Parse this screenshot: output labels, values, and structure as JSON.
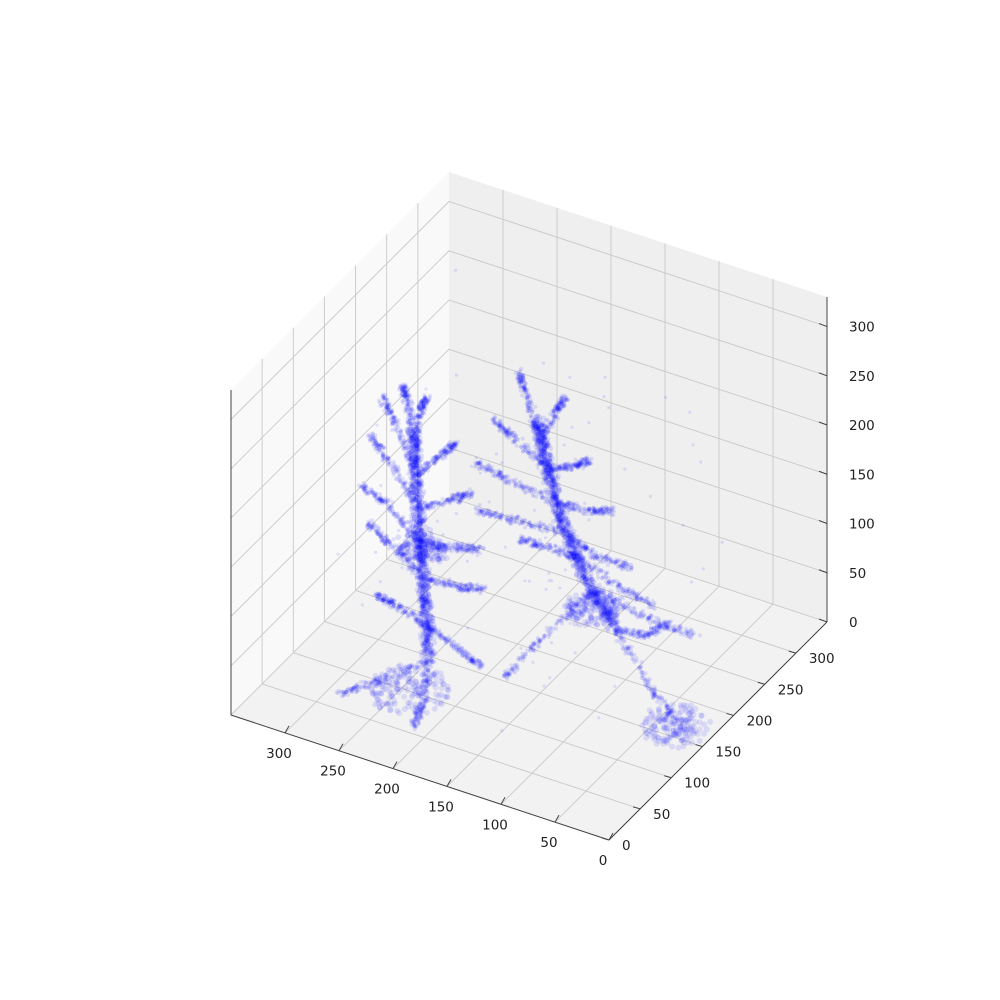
{
  "chart_data": {
    "type": "scatter",
    "projection": "3d",
    "title": "",
    "xlabel": "",
    "ylabel": "",
    "zlabel": "",
    "xlim": [
      0,
      350
    ],
    "ylim": [
      0,
      350
    ],
    "zlim": [
      0,
      330
    ],
    "xticks": [
      "0",
      "50",
      "100",
      "150",
      "200",
      "250",
      "300"
    ],
    "yticks": [
      "0",
      "50",
      "100",
      "150",
      "200",
      "250",
      "300"
    ],
    "zticks": [
      "0",
      "50",
      "100",
      "150",
      "200",
      "250",
      "300"
    ],
    "grid": true,
    "legend": "none",
    "series": [
      {
        "color": "#0000ff",
        "opacity": 0.1,
        "structures": [
          {
            "trunk": [
              [
                115,
                210,
                40
              ],
              [
                135,
                195,
                95
              ],
              [
                150,
                185,
                150
              ],
              [
                160,
                180,
                205
              ],
              [
                168,
                175,
                255
              ]
            ],
            "branches": [
              [
                [
                  115,
                  210,
                  40
                ],
                [
                  60,
                  170,
                  25
                ],
                [
                  20,
                  150,
                  15
                ]
              ],
              [
                [
                  115,
                  210,
                  40
                ],
                [
                  110,
                  250,
                  10
                ],
                [
                  105,
                  280,
                  5
                ]
              ],
              [
                [
                  130,
                  200,
                  80
                ],
                [
                  80,
                  200,
                  70
                ],
                [
                  40,
                  210,
                  60
                ]
              ],
              [
                [
                  130,
                  200,
                  80
                ],
                [
                  150,
                  150,
                  55
                ],
                [
                  165,
                  120,
                  30
                ]
              ],
              [
                [
                  140,
                  192,
                  115
                ],
                [
                  95,
                  180,
                  110
                ],
                [
                  60,
                  175,
                  105
                ]
              ],
              [
                [
                  140,
                  192,
                  115
                ],
                [
                  180,
                  210,
                  100
                ],
                [
                  210,
                  220,
                  90
                ]
              ],
              [
                [
                  148,
                  187,
                  140
                ],
                [
                  110,
                  170,
                  140
                ],
                [
                  70,
                  160,
                  150
                ]
              ],
              [
                [
                  148,
                  187,
                  140
                ],
                [
                  190,
                  175,
                  145
                ],
                [
                  225,
                  180,
                  140
                ]
              ],
              [
                [
                  153,
                  184,
                  170
                ],
                [
                  115,
                  170,
                  185
                ],
                [
                  90,
                  160,
                  200
                ]
              ],
              [
                [
                  153,
                  184,
                  170
                ],
                [
                  195,
                  175,
                  185
                ],
                [
                  220,
                  170,
                  195
                ]
              ],
              [
                [
                  160,
                  180,
                  205
                ],
                [
                  130,
                  170,
                  225
                ],
                [
                  110,
                  160,
                  245
                ]
              ],
              [
                [
                  160,
                  180,
                  205
                ],
                [
                  190,
                  175,
                  230
                ],
                [
                  205,
                  170,
                  245
                ]
              ],
              [
                [
                  165,
                  177,
                  235
                ],
                [
                  150,
                  175,
                  270
                ],
                [
                  140,
                  172,
                  290
                ]
              ],
              [
                [
                  165,
                  177,
                  235
                ],
                [
                  178,
                  176,
                  275
                ],
                [
                  185,
                  175,
                  300
                ]
              ]
            ]
          },
          {
            "trunk": [
              [
                230,
                110,
                30
              ],
              [
                240,
                120,
                80
              ],
              [
                250,
                130,
                130
              ],
              [
                258,
                138,
                180
              ],
              [
                265,
                145,
                230
              ]
            ],
            "branches": [
              [
                [
                  230,
                  110,
                  30
                ],
                [
                  265,
                  85,
                  10
                ],
                [
                  290,
                  70,
                  0
                ]
              ],
              [
                [
                  230,
                  110,
                  30
                ],
                [
                  220,
                  80,
                  5
                ],
                [
                  215,
                  60,
                  0
                ]
              ],
              [
                [
                  236,
                  115,
                  60
                ],
                [
                  200,
                  105,
                  55
                ],
                [
                  175,
                  100,
                  50
                ]
              ],
              [
                [
                  236,
                  115,
                  60
                ],
                [
                  280,
                  140,
                  50
                ],
                [
                  305,
                  155,
                  40
                ]
              ],
              [
                [
                  242,
                  122,
                  100
                ],
                [
                  205,
                  115,
                  110
                ],
                [
                  180,
                  110,
                  120
                ]
              ],
              [
                [
                  242,
                  122,
                  100
                ],
                [
                  285,
                  140,
                  110
                ],
                [
                  310,
                  150,
                  115
                ]
              ],
              [
                [
                  248,
                  128,
                  130
                ],
                [
                  210,
                  120,
                  145
                ],
                [
                  185,
                  115,
                  155
                ]
              ],
              [
                [
                  248,
                  128,
                  130
                ],
                [
                  290,
                  145,
                  145
                ],
                [
                  315,
                  150,
                  150
                ]
              ],
              [
                [
                  254,
                  134,
                  160
                ],
                [
                  220,
                  128,
                  185
                ],
                [
                  200,
                  125,
                  200
                ]
              ],
              [
                [
                  254,
                  134,
                  160
                ],
                [
                  290,
                  150,
                  185
                ],
                [
                  310,
                  155,
                  200
                ]
              ],
              [
                [
                  258,
                  138,
                  190
                ],
                [
                  230,
                  132,
                  225
                ],
                [
                  215,
                  130,
                  245
                ]
              ],
              [
                [
                  258,
                  138,
                  190
                ],
                [
                  285,
                  150,
                  225
                ],
                [
                  300,
                  155,
                  245
                ]
              ],
              [
                [
                  263,
                  143,
                  220
                ],
                [
                  255,
                  140,
                  255
                ],
                [
                  250,
                  140,
                  270
                ]
              ],
              [
                [
                  263,
                  143,
                  220
                ],
                [
                  272,
                  148,
                  255
                ],
                [
                  278,
                  150,
                  265
                ]
              ]
            ]
          }
        ],
        "blobs": [
          [
            30,
            160,
            0,
            28,
            8
          ],
          [
            240,
            95,
            0,
            32,
            10
          ],
          [
            135,
            205,
            50,
            22,
            14
          ],
          [
            245,
            125,
            120,
            20,
            16
          ]
        ]
      }
    ]
  }
}
